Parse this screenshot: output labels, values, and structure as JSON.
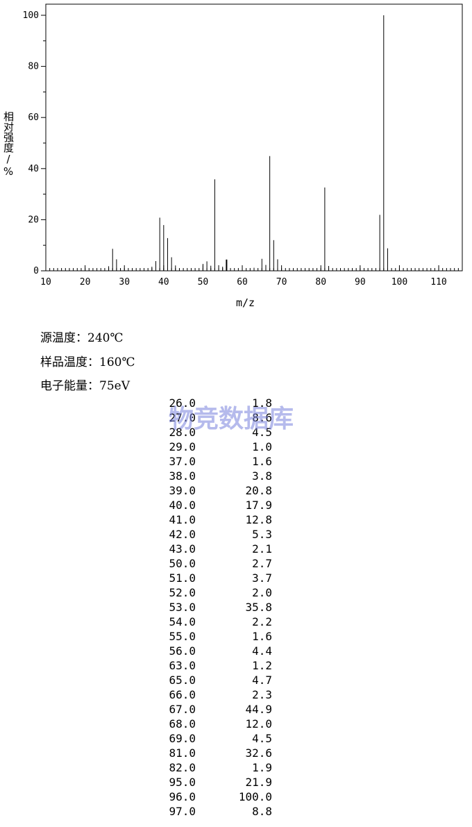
{
  "chart_data": {
    "type": "bar",
    "xlabel": "m/z",
    "ylabel": "相对强度/%",
    "xlim": [
      10,
      116
    ],
    "ylim": [
      0,
      100
    ],
    "x_ticks": [
      "10",
      "20",
      "30",
      "40",
      "50",
      "60",
      "70",
      "80",
      "90",
      "100",
      "110"
    ],
    "y_ticks": [
      "0",
      "20",
      "40",
      "60",
      "80",
      "100"
    ],
    "peaks": [
      {
        "mz": 26.0,
        "intensity": 1.8
      },
      {
        "mz": 27.0,
        "intensity": 8.6
      },
      {
        "mz": 28.0,
        "intensity": 4.5
      },
      {
        "mz": 29.0,
        "intensity": 1.0
      },
      {
        "mz": 37.0,
        "intensity": 1.6
      },
      {
        "mz": 38.0,
        "intensity": 3.8
      },
      {
        "mz": 39.0,
        "intensity": 20.8
      },
      {
        "mz": 40.0,
        "intensity": 17.9
      },
      {
        "mz": 41.0,
        "intensity": 12.8
      },
      {
        "mz": 42.0,
        "intensity": 5.3
      },
      {
        "mz": 43.0,
        "intensity": 2.1
      },
      {
        "mz": 50.0,
        "intensity": 2.7
      },
      {
        "mz": 51.0,
        "intensity": 3.7
      },
      {
        "mz": 52.0,
        "intensity": 2.0
      },
      {
        "mz": 53.0,
        "intensity": 35.8
      },
      {
        "mz": 54.0,
        "intensity": 2.2
      },
      {
        "mz": 55.0,
        "intensity": 1.6
      },
      {
        "mz": 56.0,
        "intensity": 4.4
      },
      {
        "mz": 63.0,
        "intensity": 1.2
      },
      {
        "mz": 65.0,
        "intensity": 4.7
      },
      {
        "mz": 66.0,
        "intensity": 2.3
      },
      {
        "mz": 67.0,
        "intensity": 44.9
      },
      {
        "mz": 68.0,
        "intensity": 12.0
      },
      {
        "mz": 69.0,
        "intensity": 4.5
      },
      {
        "mz": 81.0,
        "intensity": 32.6
      },
      {
        "mz": 82.0,
        "intensity": 1.9
      },
      {
        "mz": 95.0,
        "intensity": 21.9
      },
      {
        "mz": 96.0,
        "intensity": 100.0
      },
      {
        "mz": 97.0,
        "intensity": 8.8
      }
    ]
  },
  "info": {
    "source_temp": "源温度：240℃",
    "sample_temp": "样品温度：160℃",
    "electron_energy": "电子能量：75eV"
  },
  "table": [
    {
      "mz": "26.0",
      "intensity": "1.8"
    },
    {
      "mz": "27.0",
      "intensity": "8.6"
    },
    {
      "mz": "28.0",
      "intensity": "4.5"
    },
    {
      "mz": "29.0",
      "intensity": "1.0"
    },
    {
      "mz": "37.0",
      "intensity": "1.6"
    },
    {
      "mz": "38.0",
      "intensity": "3.8"
    },
    {
      "mz": "39.0",
      "intensity": "20.8"
    },
    {
      "mz": "40.0",
      "intensity": "17.9"
    },
    {
      "mz": "41.0",
      "intensity": "12.8"
    },
    {
      "mz": "42.0",
      "intensity": "5.3"
    },
    {
      "mz": "43.0",
      "intensity": "2.1"
    },
    {
      "mz": "50.0",
      "intensity": "2.7"
    },
    {
      "mz": "51.0",
      "intensity": "3.7"
    },
    {
      "mz": "52.0",
      "intensity": "2.0"
    },
    {
      "mz": "53.0",
      "intensity": "35.8"
    },
    {
      "mz": "54.0",
      "intensity": "2.2"
    },
    {
      "mz": "55.0",
      "intensity": "1.6"
    },
    {
      "mz": "56.0",
      "intensity": "4.4"
    },
    {
      "mz": "63.0",
      "intensity": "1.2"
    },
    {
      "mz": "65.0",
      "intensity": "4.7"
    },
    {
      "mz": "66.0",
      "intensity": "2.3"
    },
    {
      "mz": "67.0",
      "intensity": "44.9"
    },
    {
      "mz": "68.0",
      "intensity": "12.0"
    },
    {
      "mz": "69.0",
      "intensity": "4.5"
    },
    {
      "mz": "81.0",
      "intensity": "32.6"
    },
    {
      "mz": "82.0",
      "intensity": "1.9"
    },
    {
      "mz": "95.0",
      "intensity": "21.9"
    },
    {
      "mz": "96.0",
      "intensity": "100.0"
    },
    {
      "mz": "97.0",
      "intensity": "8.8"
    }
  ],
  "watermark": "物竞数据库"
}
